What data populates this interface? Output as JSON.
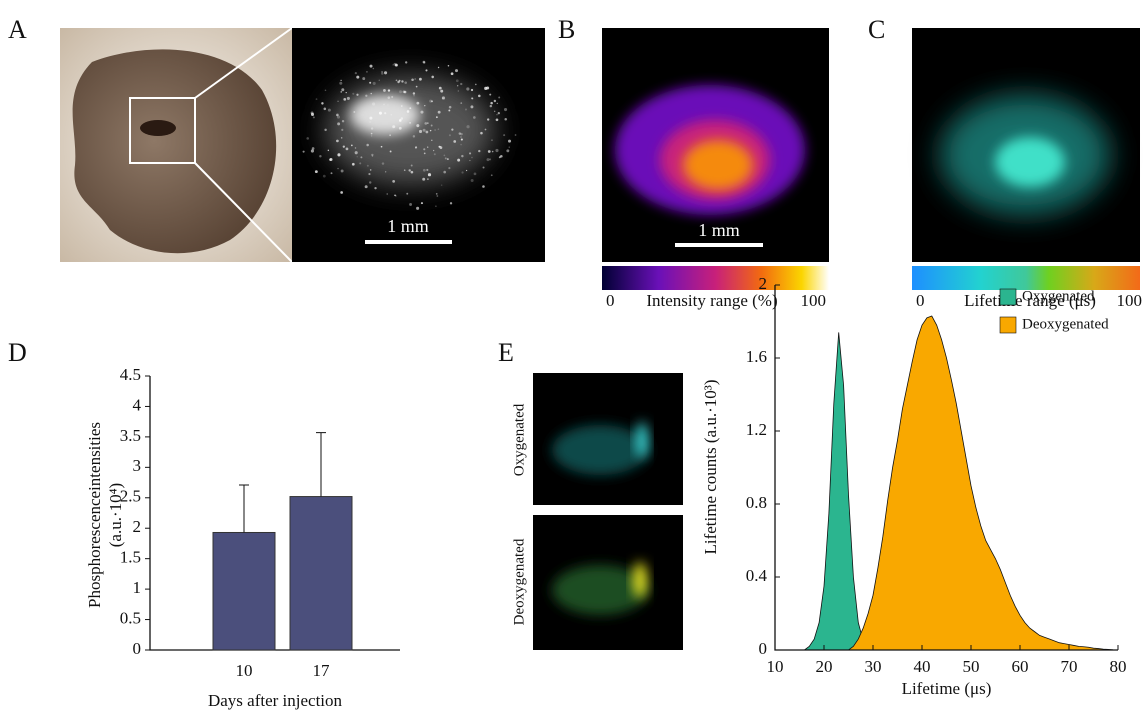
{
  "panels": {
    "labels": [
      "A",
      "B",
      "C",
      "D",
      "E"
    ],
    "scale_bar": "1 mm",
    "intensity_bar": {
      "min": 0,
      "label": "Intensity range (%)",
      "max": 100
    },
    "lifetime_bar": {
      "min": 0,
      "label": "Lifetime range (μs)",
      "max": 100
    },
    "image_labels": [
      "Oxygenated",
      "Deoxygenated"
    ]
  },
  "chart_data": [
    {
      "type": "bar",
      "categories": [
        "10",
        "17"
      ],
      "values": [
        1.93,
        2.52
      ],
      "errors": [
        0.78,
        1.05
      ],
      "color": "#4b4f7c",
      "ylim": [
        0,
        4.5
      ],
      "yticks": [
        0,
        0.5,
        1,
        1.5,
        2,
        2.5,
        3,
        3.5,
        4,
        4.5
      ],
      "ylabel": "Phosphorescenceintensities",
      "ylabel_unit": "(a.u.·10⁴)",
      "xlabel": "Days after injection"
    },
    {
      "type": "area",
      "xlabel": "Lifetime (μs)",
      "ylabel": "Lifetime counts (a.u.·10³)",
      "legend": "upper right",
      "xlim": [
        10,
        80
      ],
      "xticks": [
        10,
        20,
        30,
        40,
        50,
        60,
        70,
        80
      ],
      "ylim": [
        0,
        2
      ],
      "yticks": [
        0,
        0.4,
        0.8,
        1.2,
        1.6,
        2
      ],
      "x": [
        16,
        17,
        18,
        19,
        20,
        21,
        22,
        23,
        24,
        25,
        26,
        27,
        28,
        29,
        30,
        31,
        32,
        33,
        34,
        35,
        36,
        37,
        38,
        39,
        40,
        41,
        42,
        43,
        44,
        45,
        46,
        47,
        48,
        49,
        50,
        51,
        52,
        53,
        54,
        55,
        56,
        57,
        58,
        59,
        60,
        61,
        62,
        63,
        64,
        65,
        66,
        67,
        68,
        69,
        70,
        71,
        72,
        73,
        74,
        75,
        76,
        77,
        78,
        79,
        80
      ],
      "series": [
        {
          "name": "Oxygenated",
          "color": "#2bb58f",
          "values": [
            0,
            0.02,
            0.06,
            0.15,
            0.35,
            0.75,
            1.35,
            1.74,
            1.45,
            0.85,
            0.4,
            0.15,
            0.05,
            0.01,
            0,
            0,
            0,
            0,
            0,
            0,
            0,
            0,
            0,
            0,
            0,
            0,
            0,
            0,
            0,
            0,
            0,
            0,
            0,
            0,
            0,
            0,
            0,
            0,
            0,
            0,
            0,
            0,
            0,
            0,
            0,
            0,
            0,
            0,
            0,
            0,
            0,
            0,
            0,
            0,
            0,
            0,
            0,
            0,
            0,
            0,
            0,
            0,
            0,
            0,
            0
          ]
        },
        {
          "name": "Deoxygenated",
          "color": "#f9a800",
          "values": [
            0,
            0,
            0,
            0,
            0,
            0,
            0,
            0,
            0,
            0,
            0.02,
            0.06,
            0.12,
            0.2,
            0.3,
            0.45,
            0.62,
            0.82,
            1.0,
            1.15,
            1.32,
            1.45,
            1.58,
            1.7,
            1.78,
            1.82,
            1.83,
            1.78,
            1.7,
            1.6,
            1.48,
            1.35,
            1.2,
            1.05,
            0.9,
            0.78,
            0.68,
            0.6,
            0.55,
            0.5,
            0.44,
            0.37,
            0.3,
            0.24,
            0.19,
            0.15,
            0.12,
            0.1,
            0.08,
            0.07,
            0.06,
            0.05,
            0.04,
            0.035,
            0.03,
            0.025,
            0.02,
            0.018,
            0.015,
            0.01,
            0.008,
            0.005,
            0.003,
            0.001,
            0
          ]
        }
      ]
    }
  ]
}
